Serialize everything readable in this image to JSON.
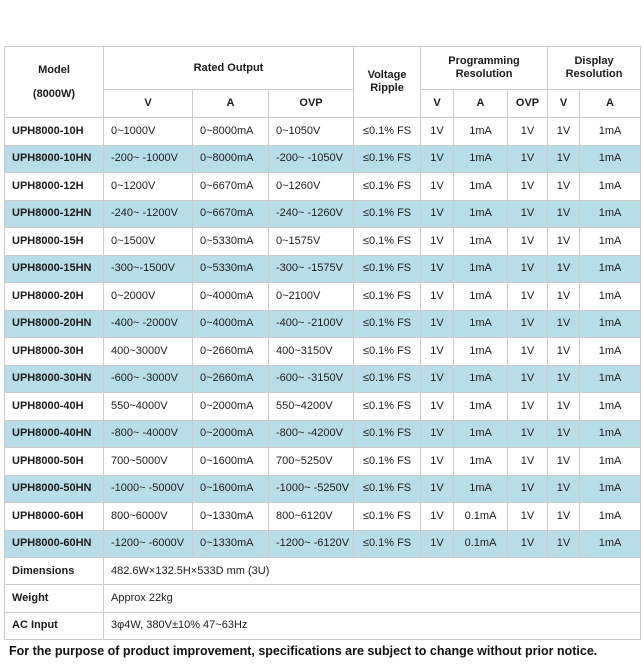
{
  "colors": {
    "highlight_row": "#b7dee8",
    "border": "#cbcbcb",
    "text": "#1c1c1c"
  },
  "table": {
    "header": {
      "model_line1": "Model",
      "model_line2": "(8000W)",
      "rated_output": "Rated Output",
      "ripple_line1": "Voltage",
      "ripple_line2": "Ripple",
      "prog_line1": "Programming",
      "prog_line2": "Resolution",
      "disp_line1": "Display",
      "disp_line2": "Resolution",
      "sub": [
        "V",
        "A",
        "OVP",
        "V",
        "A",
        "OVP",
        "V",
        "A"
      ]
    },
    "rows": [
      {
        "model": "UPH8000-10H",
        "v": "0~1000V",
        "a": "0~8000mA",
        "ovp": "0~1050V",
        "ripple": "≤0.1% FS",
        "prog_v": "1V",
        "prog_a": "1mA",
        "prog_ovp": "1V",
        "disp_v": "1V",
        "disp_a": "1mA"
      },
      {
        "model": "UPH8000-10HN",
        "v": "-200~ -1000V",
        "a": "0~8000mA",
        "ovp": "-200~ -1050V",
        "ripple": "≤0.1% FS",
        "prog_v": "1V",
        "prog_a": "1mA",
        "prog_ovp": "1V",
        "disp_v": "1V",
        "disp_a": "1mA"
      },
      {
        "model": "UPH8000-12H",
        "v": "0~1200V",
        "a": "0~6670mA",
        "ovp": "0~1260V",
        "ripple": "≤0.1% FS",
        "prog_v": "1V",
        "prog_a": "1mA",
        "prog_ovp": "1V",
        "disp_v": "1V",
        "disp_a": "1mA"
      },
      {
        "model": "UPH8000-12HN",
        "v": "-240~ -1200V",
        "a": "0~6670mA",
        "ovp": "-240~ -1260V",
        "ripple": "≤0.1% FS",
        "prog_v": "1V",
        "prog_a": "1mA",
        "prog_ovp": "1V",
        "disp_v": "1V",
        "disp_a": "1mA"
      },
      {
        "model": "UPH8000-15H",
        "v": "0~1500V",
        "a": "0~5330mA",
        "ovp": "0~1575V",
        "ripple": "≤0.1% FS",
        "prog_v": "1V",
        "prog_a": "1mA",
        "prog_ovp": "1V",
        "disp_v": "1V",
        "disp_a": "1mA"
      },
      {
        "model": "UPH8000-15HN",
        "v": "-300~-1500V",
        "a": "0~5330mA",
        "ovp": "-300~ -1575V",
        "ripple": "≤0.1% FS",
        "prog_v": "1V",
        "prog_a": "1mA",
        "prog_ovp": "1V",
        "disp_v": "1V",
        "disp_a": "1mA"
      },
      {
        "model": "UPH8000-20H",
        "v": "0~2000V",
        "a": "0~4000mA",
        "ovp": "0~2100V",
        "ripple": "≤0.1% FS",
        "prog_v": "1V",
        "prog_a": "1mA",
        "prog_ovp": "1V",
        "disp_v": "1V",
        "disp_a": "1mA"
      },
      {
        "model": "UPH8000-20HN",
        "v": "-400~ -2000V",
        "a": "0~4000mA",
        "ovp": "-400~ -2100V",
        "ripple": "≤0.1% FS",
        "prog_v": "1V",
        "prog_a": "1mA",
        "prog_ovp": "1V",
        "disp_v": "1V",
        "disp_a": "1mA"
      },
      {
        "model": "UPH8000-30H",
        "v": "400~3000V",
        "a": "0~2660mA",
        "ovp": "400~3150V",
        "ripple": "≤0.1% FS",
        "prog_v": "1V",
        "prog_a": "1mA",
        "prog_ovp": "1V",
        "disp_v": "1V",
        "disp_a": "1mA"
      },
      {
        "model": "UPH8000-30HN",
        "v": "-600~ -3000V",
        "a": "0~2660mA",
        "ovp": "-600~ -3150V",
        "ripple": "≤0.1% FS",
        "prog_v": "1V",
        "prog_a": "1mA",
        "prog_ovp": "1V",
        "disp_v": "1V",
        "disp_a": "1mA"
      },
      {
        "model": "UPH8000-40H",
        "v": "550~4000V",
        "a": "0~2000mA",
        "ovp": "550~4200V",
        "ripple": "≤0.1% FS",
        "prog_v": "1V",
        "prog_a": "1mA",
        "prog_ovp": "1V",
        "disp_v": "1V",
        "disp_a": "1mA"
      },
      {
        "model": "UPH8000-40HN",
        "v": "-800~ -4000V",
        "a": "0~2000mA",
        "ovp": "-800~ -4200V",
        "ripple": "≤0.1% FS",
        "prog_v": "1V",
        "prog_a": "1mA",
        "prog_ovp": "1V",
        "disp_v": "1V",
        "disp_a": "1mA"
      },
      {
        "model": "UPH8000-50H",
        "v": "700~5000V",
        "a": "0~1600mA",
        "ovp": "700~5250V",
        "ripple": "≤0.1% FS",
        "prog_v": "1V",
        "prog_a": "1mA",
        "prog_ovp": "1V",
        "disp_v": "1V",
        "disp_a": "1mA"
      },
      {
        "model": "UPH8000-50HN",
        "v": "-1000~ -5000V",
        "a": "0~1600mA",
        "ovp": "-1000~ -5250V",
        "ripple": "≤0.1% FS",
        "prog_v": "1V",
        "prog_a": "1mA",
        "prog_ovp": "1V",
        "disp_v": "1V",
        "disp_a": "1mA"
      },
      {
        "model": "UPH8000-60H",
        "v": "800~6000V",
        "a": "0~1330mA",
        "ovp": "800~6120V",
        "ripple": "≤0.1% FS",
        "prog_v": "1V",
        "prog_a": "0.1mA",
        "prog_ovp": "1V",
        "disp_v": "1V",
        "disp_a": "1mA"
      },
      {
        "model": "UPH8000-60HN",
        "v": "-1200~ -6000V",
        "a": "0~1330mA",
        "ovp": "-1200~ -6120V",
        "ripple": "≤0.1% FS",
        "prog_v": "1V",
        "prog_a": "0.1mA",
        "prog_ovp": "1V",
        "disp_v": "1V",
        "disp_a": "1mA"
      }
    ],
    "section_rows": [
      {
        "label": "Dimensions",
        "value": "482.6W×132.5H×533D mm (3U)"
      },
      {
        "label": "Weight",
        "value": "Approx 22kg"
      },
      {
        "label": "AC Input",
        "value": "3φ4W, 380V±10% 47~63Hz"
      }
    ],
    "note": "For the purpose of product improvement, specifications are subject to change without prior notice."
  }
}
